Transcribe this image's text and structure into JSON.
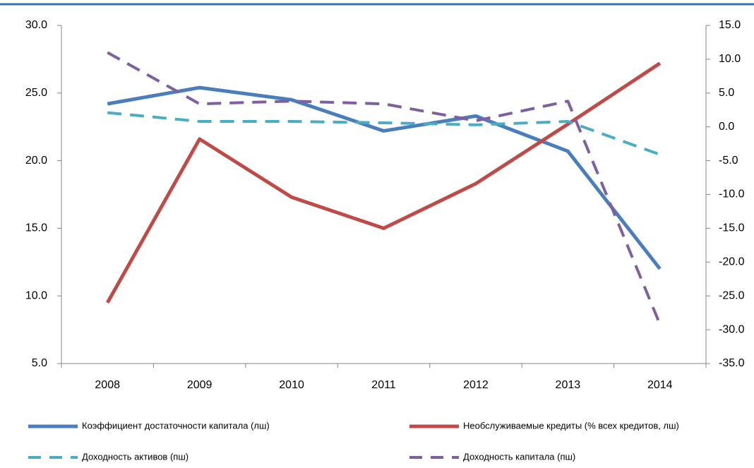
{
  "chart_data": {
    "type": "line",
    "categories": [
      "2008",
      "2009",
      "2010",
      "2011",
      "2012",
      "2013",
      "2014"
    ],
    "ylim": [
      5,
      30
    ],
    "yticks": [
      {
        "value": 5,
        "label": "5.0"
      },
      {
        "value": 10,
        "label": "10.0"
      },
      {
        "value": 15,
        "label": "15.0"
      },
      {
        "value": 20,
        "label": "20.0"
      },
      {
        "value": 25,
        "label": "25.0"
      },
      {
        "value": 30,
        "label": "30.0"
      }
    ],
    "y2lim": [
      -35,
      15
    ],
    "y2ticks": [
      {
        "value": -35,
        "label": "-35.0"
      },
      {
        "value": -30,
        "label": "-30.0"
      },
      {
        "value": -25,
        "label": "-25.0"
      },
      {
        "value": -20,
        "label": "-20.0"
      },
      {
        "value": -15,
        "label": "-15.0"
      },
      {
        "value": -10,
        "label": "-10.0"
      },
      {
        "value": -5,
        "label": "-5.0"
      },
      {
        "value": 0,
        "label": "0.0"
      },
      {
        "value": 5,
        "label": "5.0"
      },
      {
        "value": 10,
        "label": "10.0"
      },
      {
        "value": 15,
        "label": "15.0"
      }
    ],
    "series": [
      {
        "name": "Коэффициент достаточности капитала (лш)",
        "color": "#4a7ebb",
        "values": [
          24.2,
          25.4,
          24.5,
          22.2,
          23.3,
          20.7,
          12.0
        ]
      },
      {
        "name": "Необслуживаемые кредиты (% всех кредитов, лш)",
        "color": "#be4b48",
        "values": [
          9.5,
          21.6,
          17.3,
          15.0,
          18.3,
          22.7,
          27.2
        ]
      },
      {
        "name": "Доходность активов (пш)",
        "color": "#4bacc6",
        "axis": "y2",
        "values": [
          2.1,
          0.8,
          0.8,
          0.6,
          0.3,
          0.8,
          -4.1
        ]
      },
      {
        "name": "Доходность капитала (пш)",
        "color": "#7d60a0",
        "axis": "y2",
        "values": [
          11.0,
          3.4,
          3.8,
          3.4,
          0.9,
          3.8,
          -29.2
        ]
      }
    ]
  }
}
